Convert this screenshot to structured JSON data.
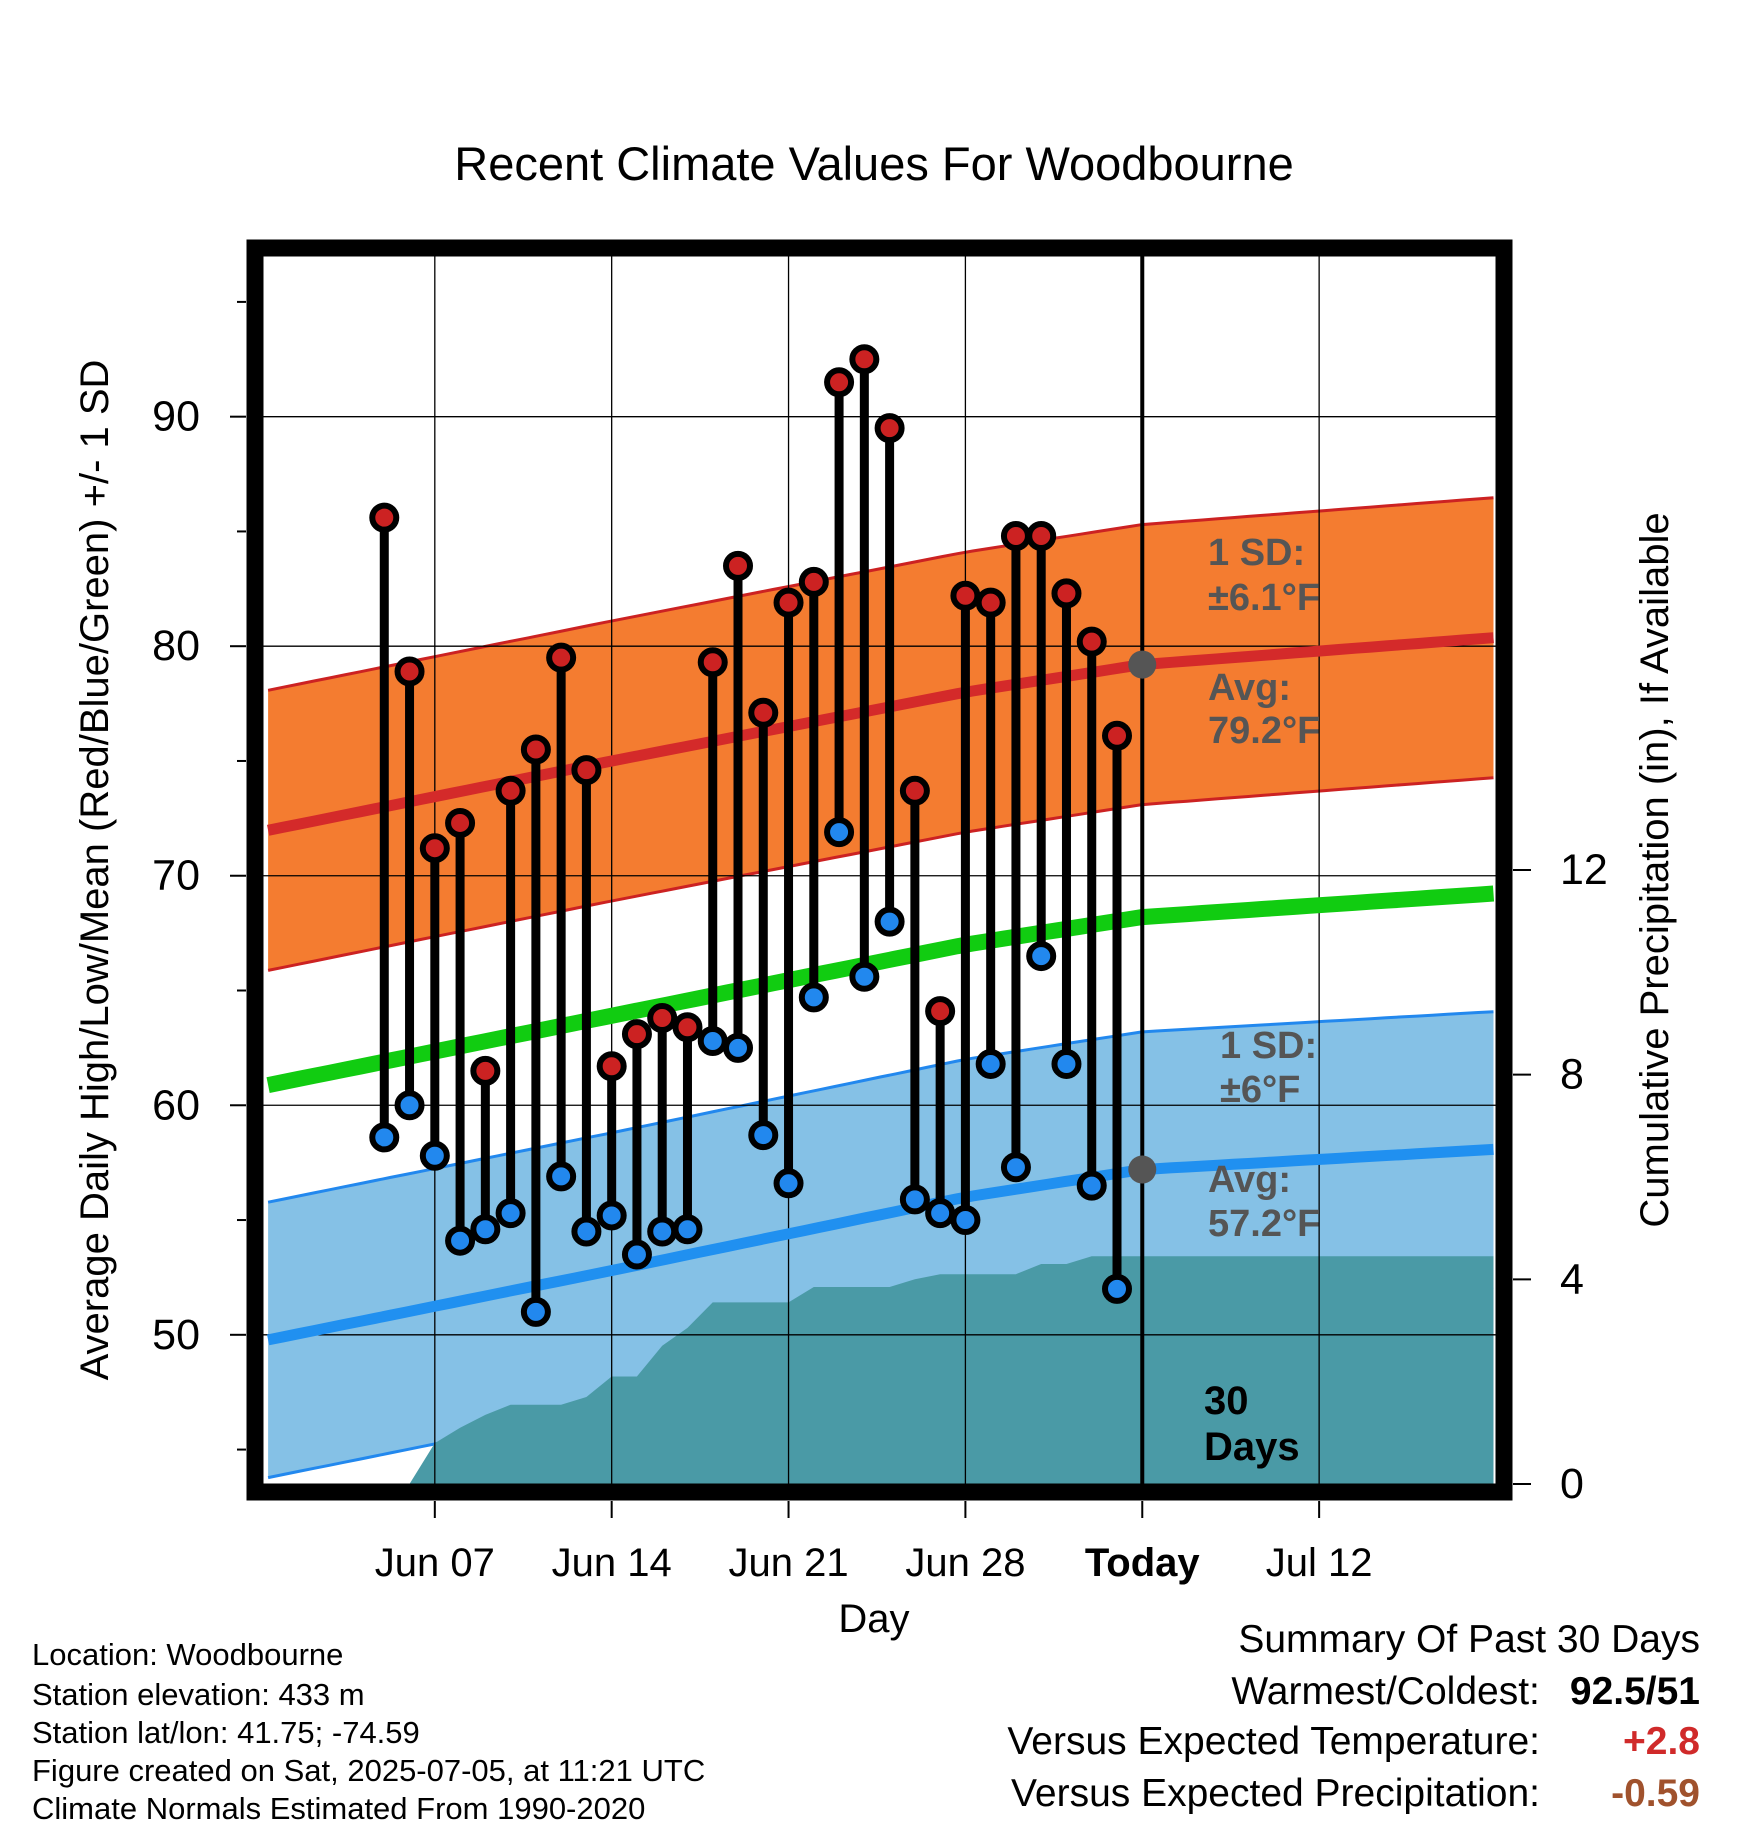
{
  "chart_data": {
    "type": "line",
    "title": "Recent Climate Values For Woodbourne",
    "xlabel": "Day",
    "ylabel": "Average Daily High/Low/Mean (Red/Blue/Green) +/- 1 SD",
    "y2label": "Cumulative Precipitation (in), If Available",
    "ylim": [
      43.5,
      97
    ],
    "y2lim": [
      0,
      24
    ],
    "xlim_days": [
      -34.8,
      14.0
    ],
    "grid": true,
    "yticks": [
      50,
      60,
      70,
      80,
      90
    ],
    "y2ticks": [
      0,
      4,
      8,
      12
    ],
    "x_ticks": [
      {
        "day": -28,
        "label": "Jun 07"
      },
      {
        "day": -21,
        "label": "Jun 14"
      },
      {
        "day": -14,
        "label": "Jun 21"
      },
      {
        "day": -7,
        "label": "Jun 28"
      },
      {
        "day": 0,
        "label": "Today"
      },
      {
        "day": 7,
        "label": "Jul 12"
      }
    ],
    "today_line_label": "30\nDays",
    "normals": {
      "days": [
        -34.5,
        -21,
        -7,
        0,
        9.5
      ],
      "avg_high": [
        72.0,
        75.0,
        78.0,
        79.2,
        80.0
      ],
      "avg_low": [
        49.8,
        52.8,
        56.0,
        57.2,
        57.8
      ],
      "avg_mean": [
        60.9,
        63.9,
        67.0,
        68.2,
        68.9
      ],
      "high_sd": 6.1,
      "low_sd": 6.0
    },
    "annotations": [
      {
        "label": "1 SD:",
        "value": "±6.1°F"
      },
      {
        "label": "Avg:",
        "value": "79.2°F"
      },
      {
        "label": "1 SD:",
        "value": "±6°F"
      },
      {
        "label": "Avg:",
        "value": "57.2°F"
      }
    ],
    "series": [
      {
        "name": "High",
        "color": "#cc2222",
        "days": [
          -30,
          -29,
          -28,
          -27,
          -26,
          -25,
          -24,
          -23,
          -22,
          -21,
          -20,
          -19,
          -18,
          -17,
          -16,
          -15,
          -14,
          -13,
          -12,
          -11,
          -10,
          -9,
          -8,
          -7,
          -6,
          -5,
          -4,
          -3,
          -2,
          -1
        ],
        "values": [
          85.6,
          78.9,
          71.2,
          72.3,
          61.5,
          73.7,
          75.5,
          79.5,
          74.6,
          61.7,
          63.1,
          63.8,
          63.4,
          79.3,
          83.5,
          77.1,
          81.9,
          82.8,
          91.5,
          92.5,
          89.5,
          73.7,
          64.1,
          82.2,
          81.9,
          84.8,
          84.8,
          82.3,
          80.2,
          76.1
        ]
      },
      {
        "name": "Low",
        "color": "#2288ee",
        "days": [
          -30,
          -29,
          -28,
          -27,
          -26,
          -25,
          -24,
          -23,
          -22,
          -21,
          -20,
          -19,
          -18,
          -17,
          -16,
          -15,
          -14,
          -13,
          -12,
          -11,
          -10,
          -9,
          -8,
          -7,
          -6,
          -5,
          -4,
          -3,
          -2,
          -1
        ],
        "values": [
          58.6,
          60.0,
          57.8,
          54.1,
          54.6,
          55.3,
          51.0,
          56.9,
          54.5,
          55.2,
          53.5,
          54.5,
          54.6,
          62.8,
          62.5,
          58.7,
          56.6,
          64.7,
          71.9,
          65.6,
          68.0,
          55.9,
          55.3,
          55.0,
          61.8,
          57.3,
          66.5,
          61.8,
          56.5,
          52.0
        ]
      }
    ],
    "precip_cumulative": {
      "days": [
        -30,
        -29,
        -28,
        -27,
        -26,
        -25,
        -24,
        -23,
        -22,
        -21,
        -20,
        -19,
        -18,
        -17,
        -16,
        -15,
        -14,
        -13,
        -12,
        -11,
        -10,
        -9,
        -8,
        -7,
        -6,
        -5,
        -4,
        -3,
        -2,
        -1,
        0
      ],
      "values": [
        0.0,
        0.0,
        0.8,
        1.1,
        1.35,
        1.55,
        1.55,
        1.55,
        1.7,
        2.1,
        2.1,
        2.7,
        3.05,
        3.55,
        3.55,
        3.55,
        3.55,
        3.85,
        3.85,
        3.85,
        3.85,
        4.0,
        4.1,
        4.1,
        4.1,
        4.1,
        4.3,
        4.3,
        4.45,
        4.45,
        4.45
      ],
      "color": "#4a9aa6"
    }
  },
  "info": {
    "location": "Location: Woodbourne",
    "elevation": "Station elevation: 433 m",
    "latlon": "Station lat/lon: 41.75; -74.59",
    "created": "Figure created on Sat, 2025-07-05, at 11:21 UTC",
    "normals": "Climate Normals Estimated From 1990-2020"
  },
  "summary": {
    "title": "Summary Of Past 30 Days",
    "warmest_label": "Warmest/Coldest:",
    "warmest_value": "92.5/51",
    "temp_label": "Versus Expected Temperature:",
    "temp_value": "+2.8",
    "temp_color": "#d02a2a",
    "precip_label": "Versus Expected Precipitation:",
    "precip_value": "-0.59",
    "precip_color": "#a0522d"
  }
}
